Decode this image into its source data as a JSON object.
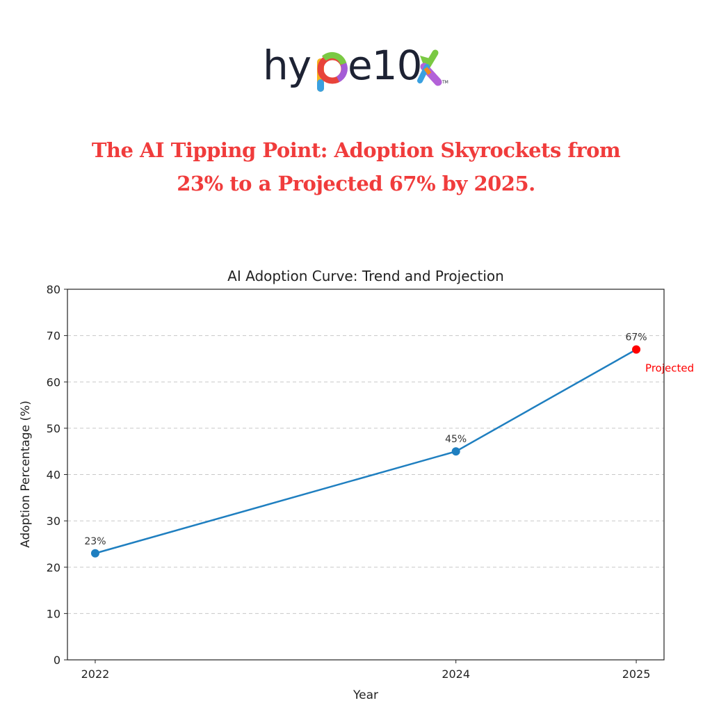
{
  "brand": {
    "name": "hype10x",
    "tm": "TM"
  },
  "headline": {
    "line1": "The AI Tipping Point: Adoption Skyrockets from",
    "line2": "23% to a Projected 67% by 2025."
  },
  "colors": {
    "headline": "#f03c3c",
    "line": "#1f7fc0",
    "projected": "#ff0000"
  },
  "chart_data": {
    "type": "line",
    "title": "AI Adoption Curve: Trend and Projection",
    "xlabel": "Year",
    "ylabel": "Adoption Percentage (%)",
    "x": [
      2022,
      2024,
      2025
    ],
    "xticks": [
      "2022",
      "2024",
      "2025"
    ],
    "values": [
      23,
      45,
      67
    ],
    "data_labels": [
      "23%",
      "45%",
      "67%"
    ],
    "projected_index": 2,
    "annotation": "Projected",
    "xlim": [
      2021.846,
      2025.154
    ],
    "ylim": [
      0,
      80
    ],
    "yticks": [
      0,
      10,
      20,
      30,
      40,
      50,
      60,
      70,
      80
    ],
    "grid": "y-dashed"
  }
}
